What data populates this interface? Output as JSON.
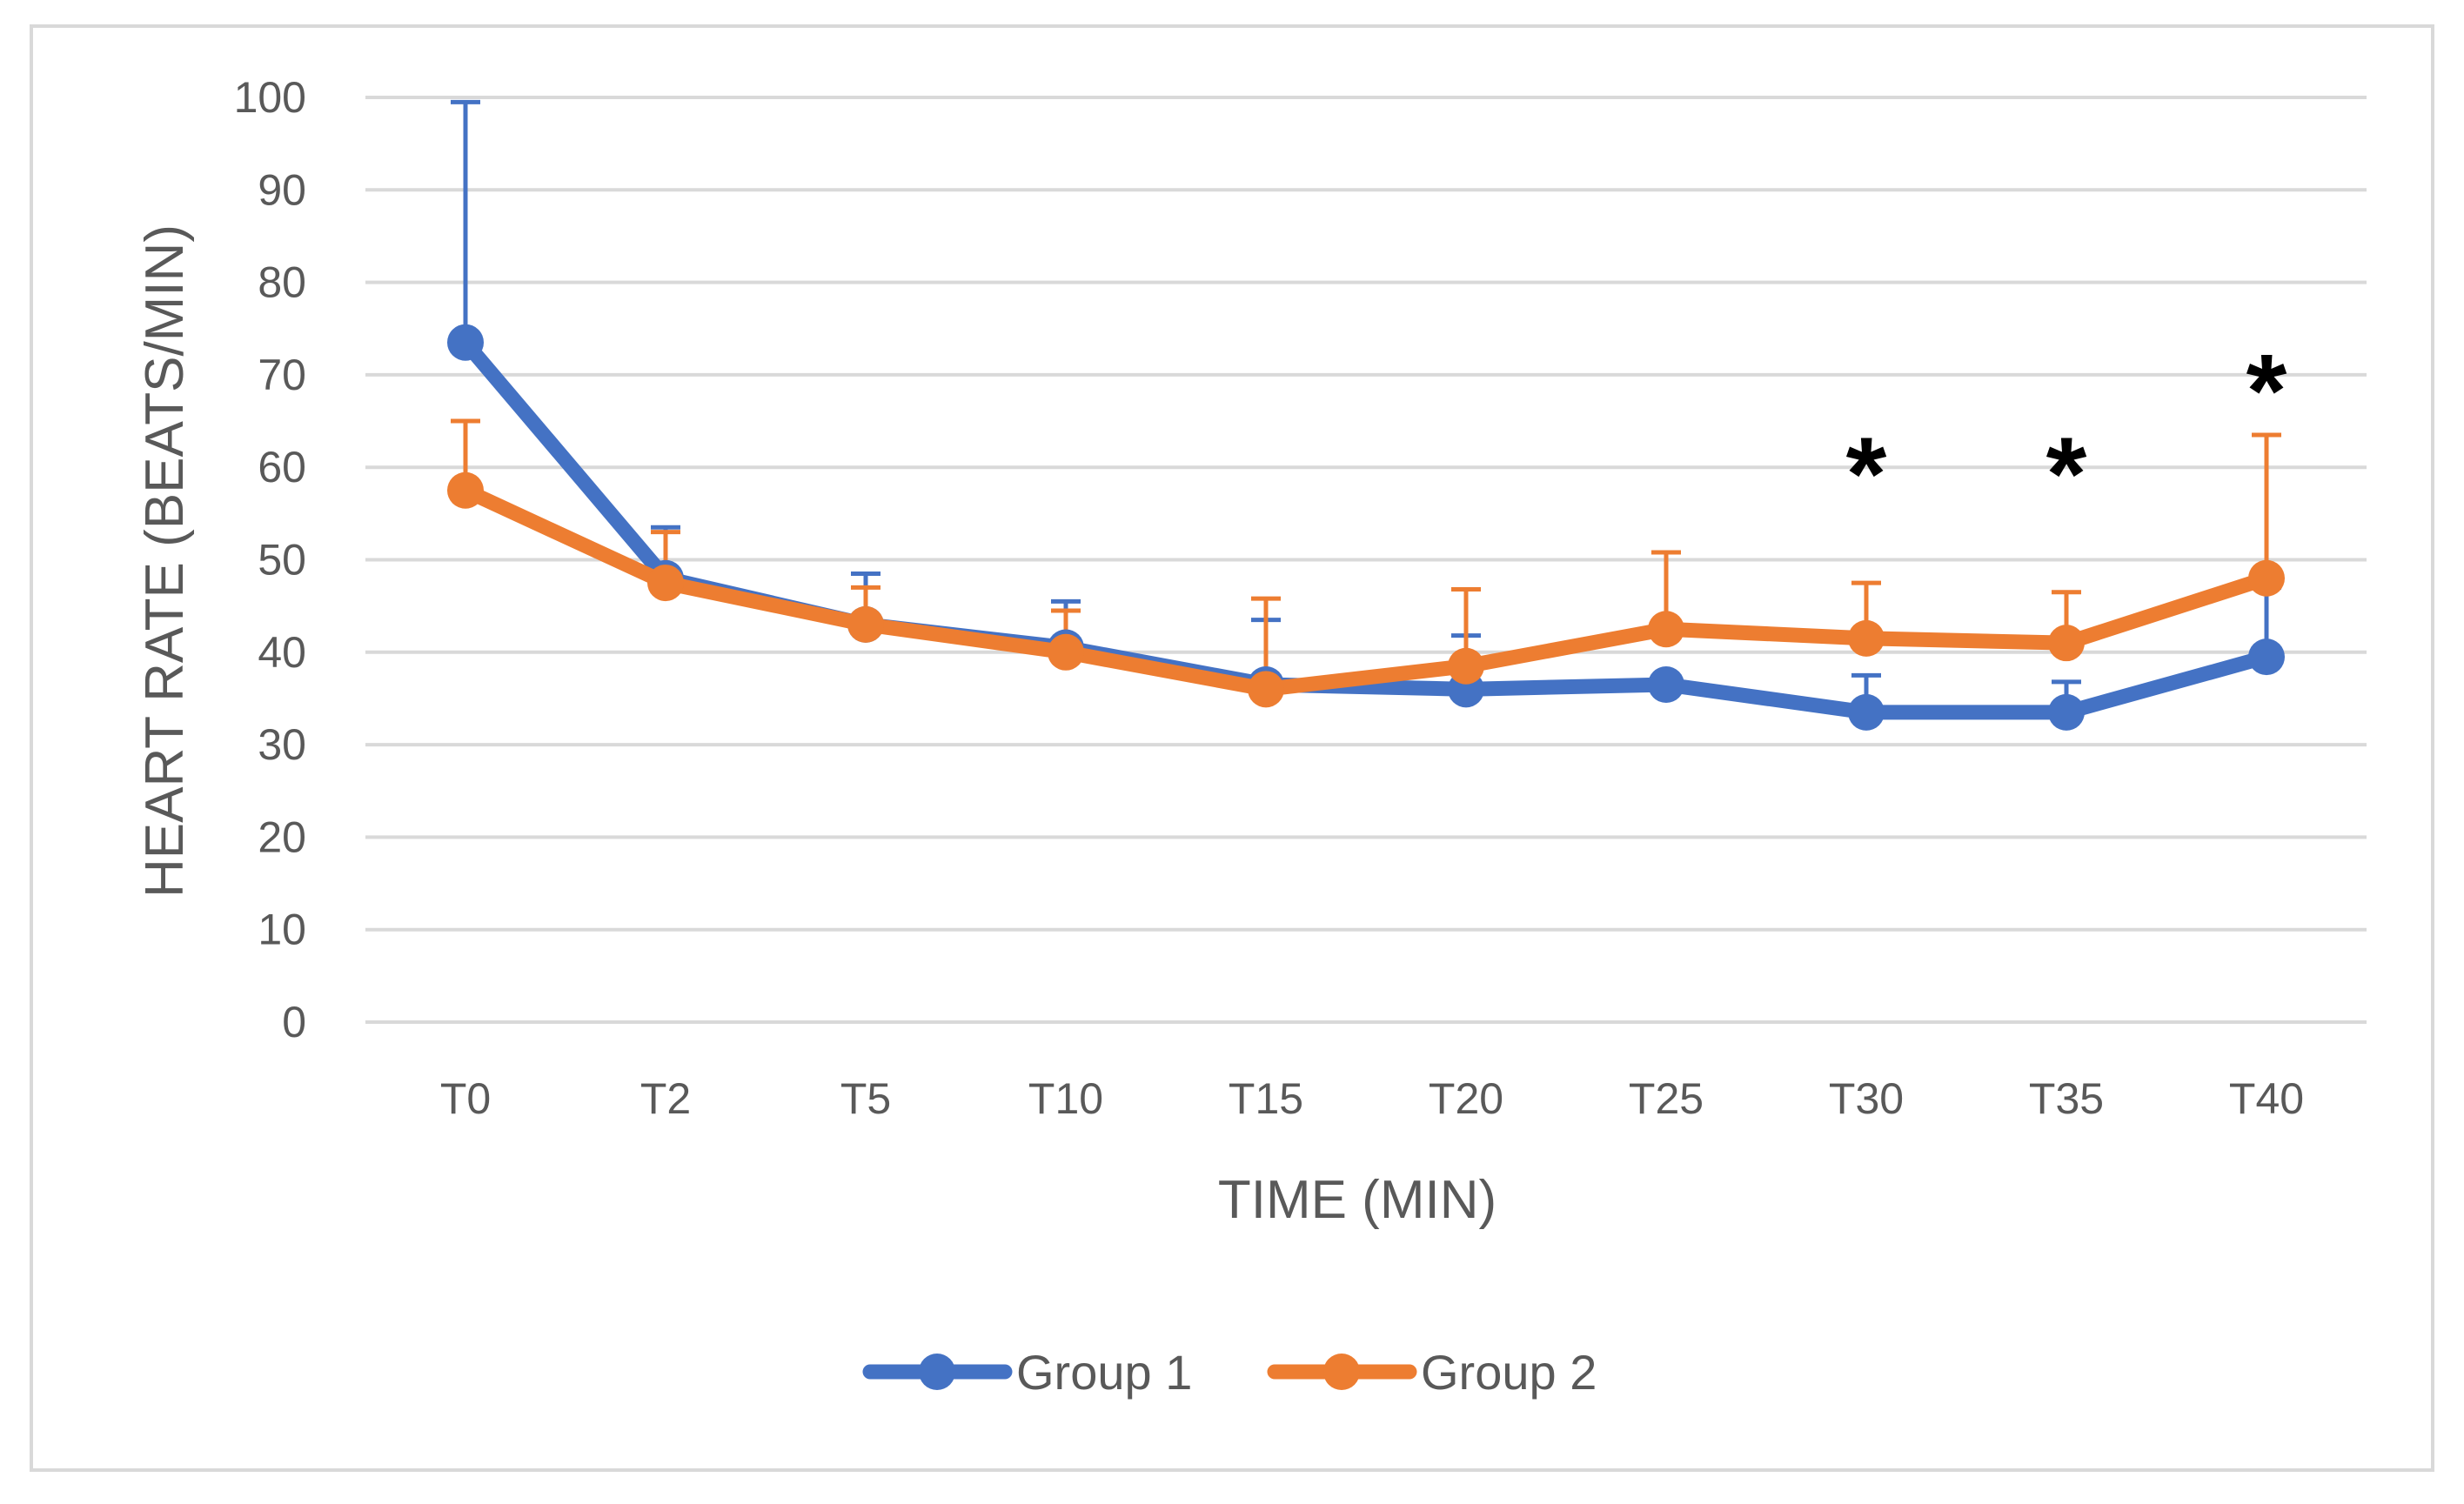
{
  "chart_data": {
    "type": "line",
    "title": "",
    "xlabel": "TIME (MIN)",
    "ylabel": "HEART RATE (BEATS/MIN)",
    "ylim": [
      0,
      100
    ],
    "ytick_step": 10,
    "grid": true,
    "legend_position": "bottom",
    "categories": [
      "T0",
      "T2",
      "T5",
      "T10",
      "T15",
      "T20",
      "T25",
      "T30",
      "T35",
      "T40"
    ],
    "series": [
      {
        "name": "Group 1",
        "color": "#4472C4",
        "values": [
          73.5,
          48,
          43,
          40.5,
          36.5,
          36,
          36.5,
          33.5,
          33.5,
          39.5
        ],
        "error_upper": [
          99.5,
          53.5,
          48.5,
          45.5,
          43.5,
          41.8,
          36.5,
          37.5,
          36.8,
          47
        ]
      },
      {
        "name": "Group 2",
        "color": "#ED7D31",
        "values": [
          57.5,
          47.5,
          43,
          40,
          36,
          38.5,
          42.5,
          41.5,
          41,
          48
        ],
        "error_upper": [
          65,
          53,
          47,
          44.5,
          45.8,
          46.8,
          50.8,
          47.5,
          46.5,
          63.5
        ]
      }
    ],
    "annotations": [
      {
        "category": "T30",
        "y": 62,
        "text": "*"
      },
      {
        "category": "T35",
        "y": 62,
        "text": "*"
      },
      {
        "category": "T40",
        "y": 71,
        "text": "*"
      }
    ]
  }
}
